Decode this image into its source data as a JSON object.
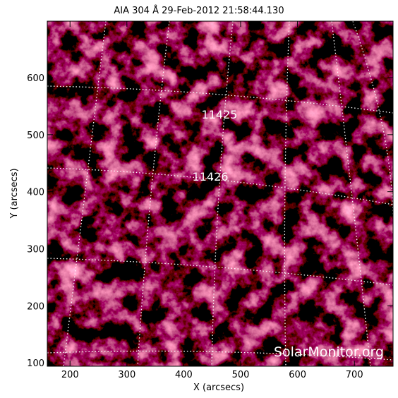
{
  "chart_data": {
    "type": "image",
    "title": "AIA 304 Å 29-Feb-2012 21:58:44.130",
    "x_label": "X (arcsecs)",
    "y_label": "Y (arcsecs)",
    "xlim": [
      160,
      768
    ],
    "ylim": [
      94,
      699
    ],
    "xticks": [
      200,
      300,
      400,
      500,
      600,
      700
    ],
    "yticks": [
      100,
      200,
      300,
      400,
      500,
      600
    ],
    "annotations": [
      "11425",
      "11426"
    ],
    "watermark": "SolarMonitor.org"
  }
}
